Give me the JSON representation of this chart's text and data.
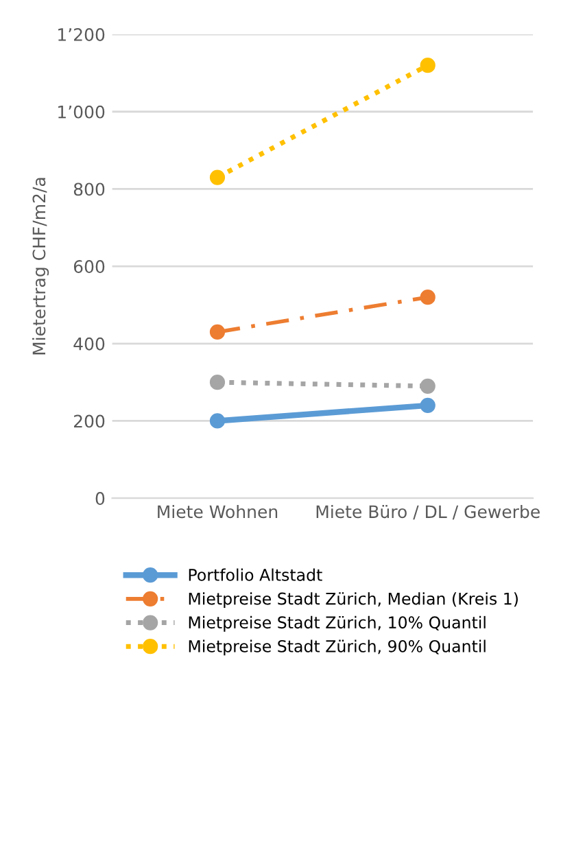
{
  "chart_data": {
    "type": "line",
    "ylabel": "Mietertrag CHF/m2/a",
    "categories": [
      "Miete Wohnen",
      "Miete Büro / DL / Gewerbe"
    ],
    "series": [
      {
        "name": "Portfolio Altstadt",
        "color": "#5b9bd5",
        "values": [
          200,
          240
        ],
        "line_style": "solid"
      },
      {
        "name": "Mietpreise Stadt Zürich, Median (Kreis 1)",
        "color": "#ed7d31",
        "values": [
          430,
          520
        ],
        "line_style": "dashed"
      },
      {
        "name": "Mietpreise Stadt Zürich, 10% Quantil",
        "color": "#a5a5a5",
        "values": [
          300,
          290
        ],
        "line_style": "dotted"
      },
      {
        "name": "Mietpreise Stadt Zürich, 90% Quantil",
        "color": "#ffc000",
        "values": [
          830,
          1120
        ],
        "line_style": "dotted"
      }
    ],
    "ylim": [
      0,
      1200
    ],
    "yticks": [
      0,
      200,
      400,
      600,
      800,
      {
        "value": 1000,
        "label": "1’000"
      },
      {
        "value": 1200,
        "label": "1’200"
      }
    ],
    "grid": "y",
    "legend": "bottom",
    "marker": "circle"
  }
}
